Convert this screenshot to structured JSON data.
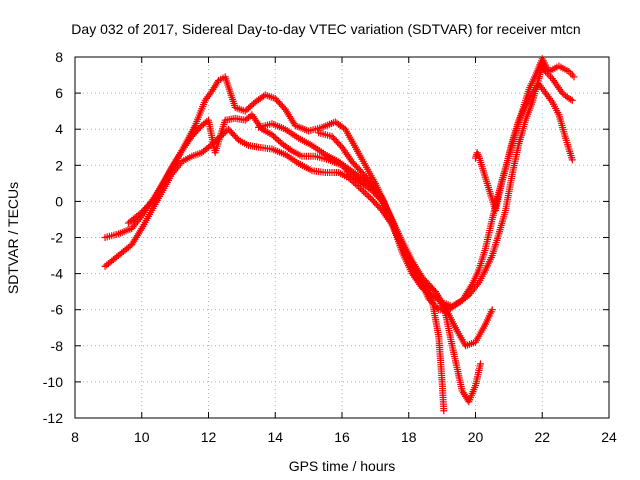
{
  "chart_data": {
    "type": "scatter",
    "title": "Day 032 of 2017, Sidereal Day-to-day VTEC variation (SDTVAR) for receiver mtcn",
    "xlabel": "GPS time / hours",
    "ylabel": "SDTVAR / TECUs",
    "xlim": [
      8,
      24
    ],
    "ylim": [
      -12,
      8
    ],
    "xticks": [
      "8",
      "10",
      "12",
      "14",
      "16",
      "18",
      "20",
      "22",
      "24"
    ],
    "yticks": [
      "8",
      "6",
      "4",
      "2",
      "0",
      "-2",
      "-4",
      "-6",
      "-8",
      "-10",
      "-12"
    ],
    "grid": true,
    "legend": "none",
    "marker": "+",
    "color": "#ff0000",
    "series": [
      {
        "points": [
          [
            8.9,
            -3.6
          ],
          [
            9.3,
            -3.0
          ],
          [
            9.7,
            -2.4
          ],
          [
            10.0,
            -1.5
          ],
          [
            10.3,
            -0.5
          ],
          [
            10.6,
            0.5
          ],
          [
            10.9,
            1.5
          ],
          [
            11.2,
            2.2
          ],
          [
            11.5,
            2.5
          ],
          [
            11.8,
            2.7
          ],
          [
            12.0,
            3.0
          ],
          [
            12.3,
            3.5
          ],
          [
            12.6,
            4.0
          ],
          [
            12.9,
            3.4
          ],
          [
            13.2,
            3.1
          ],
          [
            13.5,
            3.0
          ],
          [
            13.9,
            2.9
          ],
          [
            14.3,
            2.6
          ],
          [
            14.7,
            2.1
          ],
          [
            15.1,
            1.7
          ],
          [
            15.5,
            1.6
          ],
          [
            15.9,
            1.6
          ],
          [
            16.2,
            1.3
          ],
          [
            16.5,
            0.8
          ],
          [
            16.9,
            0.1
          ],
          [
            17.2,
            -0.5
          ],
          [
            17.5,
            -1.3
          ],
          [
            17.8,
            -2.5
          ],
          [
            18.1,
            -3.5
          ],
          [
            18.4,
            -4.4
          ],
          [
            18.7,
            -5.5
          ],
          [
            18.9,
            -7.5
          ],
          [
            19.0,
            -10.0
          ],
          [
            19.05,
            -11.6
          ]
        ]
      },
      {
        "points": [
          [
            8.9,
            -2.0
          ],
          [
            9.3,
            -1.8
          ],
          [
            9.7,
            -1.5
          ],
          [
            10.0,
            -0.8
          ],
          [
            10.3,
            0.0
          ],
          [
            10.6,
            0.9
          ],
          [
            10.9,
            1.9
          ],
          [
            11.2,
            2.8
          ],
          [
            11.5,
            3.6
          ],
          [
            11.8,
            4.2
          ],
          [
            12.0,
            4.5
          ],
          [
            12.2,
            2.7
          ],
          [
            12.5,
            4.5
          ],
          [
            12.8,
            4.6
          ],
          [
            13.1,
            4.5
          ],
          [
            13.3,
            4.8
          ],
          [
            13.6,
            4.0
          ],
          [
            13.9,
            3.7
          ],
          [
            14.2,
            3.2
          ],
          [
            14.5,
            2.8
          ],
          [
            14.8,
            2.5
          ],
          [
            15.2,
            2.5
          ],
          [
            15.6,
            2.3
          ],
          [
            16.0,
            2.0
          ],
          [
            16.3,
            1.4
          ],
          [
            16.6,
            1.0
          ],
          [
            16.9,
            0.6
          ],
          [
            17.2,
            0.0
          ],
          [
            17.5,
            -1.0
          ],
          [
            17.8,
            -2.2
          ],
          [
            18.1,
            -3.3
          ],
          [
            18.4,
            -4.2
          ],
          [
            18.8,
            -5.0
          ],
          [
            19.1,
            -6.2
          ],
          [
            19.3,
            -8.0
          ],
          [
            19.6,
            -10.5
          ],
          [
            19.8,
            -11.1
          ],
          [
            20.0,
            -10.2
          ],
          [
            20.15,
            -9.0
          ]
        ]
      },
      {
        "points": [
          [
            9.6,
            -1.2
          ],
          [
            10.0,
            -0.6
          ],
          [
            10.4,
            0.2
          ],
          [
            10.8,
            1.5
          ],
          [
            11.2,
            2.8
          ],
          [
            11.6,
            4.2
          ],
          [
            11.9,
            5.6
          ],
          [
            12.1,
            6.1
          ],
          [
            12.3,
            6.7
          ],
          [
            12.5,
            6.9
          ],
          [
            12.8,
            5.2
          ],
          [
            13.1,
            5.0
          ],
          [
            13.4,
            5.5
          ],
          [
            13.7,
            5.9
          ],
          [
            14.0,
            5.7
          ],
          [
            14.3,
            5.1
          ],
          [
            14.6,
            4.2
          ],
          [
            15.0,
            3.9
          ],
          [
            15.4,
            4.1
          ],
          [
            15.8,
            4.4
          ],
          [
            16.1,
            4.0
          ],
          [
            16.4,
            3.0
          ],
          [
            16.7,
            2.0
          ],
          [
            17.0,
            1.0
          ],
          [
            17.3,
            -0.2
          ],
          [
            17.6,
            -1.6
          ],
          [
            17.9,
            -3.0
          ],
          [
            18.2,
            -4.2
          ],
          [
            18.5,
            -4.6
          ],
          [
            18.8,
            -5.0
          ],
          [
            19.1,
            -5.9
          ],
          [
            19.4,
            -7.0
          ],
          [
            19.7,
            -8.0
          ],
          [
            20.0,
            -7.8
          ],
          [
            20.3,
            -6.8
          ],
          [
            20.5,
            -6.0
          ]
        ]
      },
      {
        "points": [
          [
            13.5,
            4.1
          ],
          [
            13.9,
            4.3
          ],
          [
            14.3,
            4.0
          ],
          [
            14.7,
            3.5
          ],
          [
            15.1,
            3.1
          ],
          [
            15.5,
            2.6
          ],
          [
            15.9,
            2.2
          ],
          [
            16.2,
            1.8
          ],
          [
            16.5,
            1.4
          ],
          [
            16.8,
            1.0
          ],
          [
            17.1,
            0.4
          ],
          [
            17.4,
            -0.6
          ],
          [
            17.7,
            -2.0
          ],
          [
            18.0,
            -3.2
          ],
          [
            18.3,
            -4.2
          ],
          [
            18.6,
            -5.4
          ],
          [
            18.9,
            -6.0
          ],
          [
            19.2,
            -6.0
          ],
          [
            19.5,
            -5.6
          ],
          [
            19.8,
            -5.2
          ],
          [
            20.1,
            -4.5
          ],
          [
            20.3,
            -3.8
          ],
          [
            20.5,
            -3.0
          ],
          [
            20.7,
            -1.8
          ],
          [
            20.9,
            -0.5
          ],
          [
            21.1,
            1.5
          ],
          [
            21.3,
            3.2
          ],
          [
            21.5,
            4.5
          ],
          [
            21.7,
            5.5
          ],
          [
            21.9,
            6.8
          ],
          [
            22.0,
            7.6
          ],
          [
            22.1,
            7.2
          ],
          [
            22.3,
            6.8
          ],
          [
            22.6,
            6.0
          ],
          [
            22.8,
            5.7
          ],
          [
            22.9,
            5.6
          ]
        ]
      },
      {
        "points": [
          [
            15.3,
            3.8
          ],
          [
            15.7,
            3.6
          ],
          [
            16.0,
            3.0
          ],
          [
            16.3,
            2.2
          ],
          [
            16.6,
            1.6
          ],
          [
            16.9,
            1.0
          ],
          [
            17.2,
            0.2
          ],
          [
            17.5,
            -1.2
          ],
          [
            17.8,
            -2.8
          ],
          [
            18.1,
            -4.0
          ],
          [
            18.4,
            -4.8
          ],
          [
            18.7,
            -5.2
          ],
          [
            19.0,
            -5.6
          ],
          [
            19.3,
            -5.8
          ],
          [
            19.6,
            -5.5
          ],
          [
            19.9,
            -4.6
          ],
          [
            20.1,
            -3.8
          ],
          [
            20.3,
            -2.6
          ],
          [
            20.5,
            -1.0
          ],
          [
            20.7,
            0.5
          ],
          [
            20.9,
            1.8
          ],
          [
            21.1,
            3.3
          ],
          [
            21.3,
            4.5
          ],
          [
            21.5,
            5.3
          ],
          [
            21.7,
            6.0
          ],
          [
            21.9,
            6.5
          ],
          [
            22.1,
            6.0
          ],
          [
            22.3,
            5.5
          ],
          [
            22.5,
            4.8
          ],
          [
            22.7,
            3.5
          ],
          [
            22.9,
            2.3
          ]
        ]
      },
      {
        "points": [
          [
            20.0,
            2.4
          ],
          [
            20.05,
            2.7
          ],
          [
            20.1,
            2.5
          ],
          [
            20.6,
            -0.5
          ],
          [
            20.8,
            1.2
          ],
          [
            21.0,
            2.5
          ],
          [
            21.2,
            3.8
          ],
          [
            21.4,
            5.0
          ],
          [
            21.6,
            6.2
          ],
          [
            21.8,
            7.0
          ],
          [
            22.0,
            7.9
          ],
          [
            22.2,
            7.2
          ],
          [
            22.5,
            7.5
          ],
          [
            22.8,
            7.2
          ],
          [
            22.95,
            6.9
          ]
        ]
      }
    ]
  }
}
